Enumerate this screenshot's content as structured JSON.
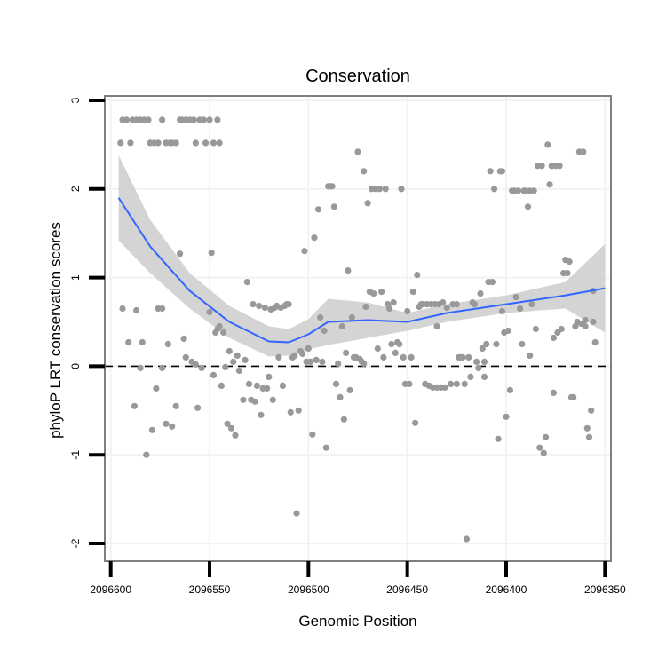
{
  "chart_data": {
    "type": "scatter",
    "title": "Conservation",
    "xlabel": "Genomic Position",
    "ylabel": "phyloP LRT conservation scores",
    "x_reversed": true,
    "xlim": [
      2096603,
      2096347
    ],
    "ylim": [
      -2.2,
      3.05
    ],
    "x_ticks": [
      2096600,
      2096550,
      2096500,
      2096450,
      2096400,
      2096350
    ],
    "x_tick_labels": [
      "2096600",
      "2096550",
      "2096500",
      "2096450",
      "2096400",
      "2096350"
    ],
    "y_ticks": [
      -2,
      -1,
      0,
      1,
      2,
      3
    ],
    "y_tick_labels": [
      "-2",
      "-1",
      "0",
      "1",
      "2",
      "3"
    ],
    "reference_line": 0,
    "colors": {
      "points": "#999999",
      "smooth": "#3366FF",
      "band": "#CCCCCC",
      "frame": "#7f7f7f"
    },
    "smooth": {
      "x": [
        2096596,
        2096580,
        2096560,
        2096540,
        2096520,
        2096510,
        2096500,
        2096490,
        2096470,
        2096450,
        2096430,
        2096400,
        2096370,
        2096350
      ],
      "y": [
        1.9,
        1.35,
        0.85,
        0.5,
        0.28,
        0.27,
        0.36,
        0.5,
        0.52,
        0.5,
        0.6,
        0.7,
        0.8,
        0.88
      ],
      "upper": [
        2.38,
        1.65,
        1.05,
        0.68,
        0.45,
        0.42,
        0.53,
        0.76,
        0.72,
        0.6,
        0.7,
        0.8,
        0.95,
        1.38
      ],
      "lower": [
        1.42,
        1.05,
        0.65,
        0.32,
        0.11,
        0.12,
        0.19,
        0.24,
        0.32,
        0.4,
        0.5,
        0.6,
        0.65,
        0.38
      ]
    },
    "points": [
      [
        2096595,
        2.52
      ],
      [
        2096594,
        2.78
      ],
      [
        2096592,
        2.78
      ],
      [
        2096590,
        2.52
      ],
      [
        2096589,
        2.78
      ],
      [
        2096587,
        2.78
      ],
      [
        2096585,
        2.78
      ],
      [
        2096583,
        2.78
      ],
      [
        2096581,
        2.78
      ],
      [
        2096580,
        2.52
      ],
      [
        2096578,
        2.52
      ],
      [
        2096576,
        2.52
      ],
      [
        2096574,
        2.78
      ],
      [
        2096572,
        2.52
      ],
      [
        2096570,
        2.52
      ],
      [
        2096569,
        2.52
      ],
      [
        2096567,
        2.52
      ],
      [
        2096565,
        2.78
      ],
      [
        2096564,
        2.78
      ],
      [
        2096562,
        2.78
      ],
      [
        2096560,
        2.78
      ],
      [
        2096558,
        2.78
      ],
      [
        2096557,
        2.52
      ],
      [
        2096555,
        2.78
      ],
      [
        2096553,
        2.78
      ],
      [
        2096552,
        2.52
      ],
      [
        2096550,
        2.78
      ],
      [
        2096548,
        2.52
      ],
      [
        2096546,
        2.78
      ],
      [
        2096545,
        2.52
      ],
      [
        2096594,
        0.65
      ],
      [
        2096591,
        0.27
      ],
      [
        2096588,
        -0.45
      ],
      [
        2096587,
        0.63
      ],
      [
        2096585,
        -0.02
      ],
      [
        2096584,
        0.27
      ],
      [
        2096582,
        -1.0
      ],
      [
        2096579,
        -0.72
      ],
      [
        2096577,
        -0.25
      ],
      [
        2096576,
        0.65
      ],
      [
        2096574,
        0.65
      ],
      [
        2096574,
        -0.02
      ],
      [
        2096572,
        -0.65
      ],
      [
        2096571,
        0.25
      ],
      [
        2096569,
        -0.68
      ],
      [
        2096567,
        -0.45
      ],
      [
        2096565,
        1.27
      ],
      [
        2096563,
        0.31
      ],
      [
        2096562,
        0.1
      ],
      [
        2096559,
        0.05
      ],
      [
        2096557,
        0.02
      ],
      [
        2096556,
        -0.47
      ],
      [
        2096554,
        -0.02
      ],
      [
        2096550,
        0.61
      ],
      [
        2096549,
        1.28
      ],
      [
        2096548,
        -0.1
      ],
      [
        2096547,
        0.38
      ],
      [
        2096546,
        0.42
      ],
      [
        2096545,
        0.45
      ],
      [
        2096544,
        -0.22
      ],
      [
        2096543,
        0.38
      ],
      [
        2096542,
        -0.01
      ],
      [
        2096541,
        -0.65
      ],
      [
        2096540,
        0.17
      ],
      [
        2096539,
        -0.7
      ],
      [
        2096538,
        0.05
      ],
      [
        2096537,
        -0.78
      ],
      [
        2096536,
        0.12
      ],
      [
        2096535,
        -0.05
      ],
      [
        2096533,
        -0.38
      ],
      [
        2096532,
        0.07
      ],
      [
        2096531,
        0.95
      ],
      [
        2096530,
        -0.2
      ],
      [
        2096529,
        -0.38
      ],
      [
        2096528,
        0.7
      ],
      [
        2096527,
        -0.4
      ],
      [
        2096526,
        -0.22
      ],
      [
        2096525,
        0.68
      ],
      [
        2096524,
        -0.55
      ],
      [
        2096523,
        -0.25
      ],
      [
        2096522,
        0.66
      ],
      [
        2096521,
        -0.25
      ],
      [
        2096520,
        -0.12
      ],
      [
        2096519,
        0.64
      ],
      [
        2096518,
        -0.38
      ],
      [
        2096517,
        0.66
      ],
      [
        2096516,
        0.68
      ],
      [
        2096515,
        0.1
      ],
      [
        2096514,
        0.66
      ],
      [
        2096513,
        -0.22
      ],
      [
        2096512,
        0.68
      ],
      [
        2096511,
        0.7
      ],
      [
        2096510,
        0.7
      ],
      [
        2096509,
        -0.52
      ],
      [
        2096508,
        0.1
      ],
      [
        2096507,
        0.12
      ],
      [
        2096506,
        -1.66
      ],
      [
        2096505,
        -0.5
      ],
      [
        2096504,
        0.17
      ],
      [
        2096503,
        0.14
      ],
      [
        2096502,
        1.3
      ],
      [
        2096501,
        0.05
      ],
      [
        2096500,
        0.2
      ],
      [
        2096499,
        0.05
      ],
      [
        2096498,
        -0.77
      ],
      [
        2096497,
        1.45
      ],
      [
        2096496,
        0.07
      ],
      [
        2096495,
        1.77
      ],
      [
        2096494,
        0.55
      ],
      [
        2096493,
        0.05
      ],
      [
        2096492,
        0.4
      ],
      [
        2096491,
        -0.92
      ],
      [
        2096490,
        2.03
      ],
      [
        2096489,
        2.03
      ],
      [
        2096488,
        2.03
      ],
      [
        2096487,
        1.8
      ],
      [
        2096486,
        -0.2
      ],
      [
        2096485,
        0.03
      ],
      [
        2096484,
        -0.35
      ],
      [
        2096483,
        0.45
      ],
      [
        2096482,
        -0.6
      ],
      [
        2096481,
        0.15
      ],
      [
        2096480,
        1.08
      ],
      [
        2096479,
        -0.27
      ],
      [
        2096478,
        0.55
      ],
      [
        2096477,
        0.1
      ],
      [
        2096476,
        0.1
      ],
      [
        2096475,
        2.42
      ],
      [
        2096474,
        0.08
      ],
      [
        2096473,
        0.05
      ],
      [
        2096472,
        2.2
      ],
      [
        2096471,
        0.67
      ],
      [
        2096470,
        1.84
      ],
      [
        2096469,
        0.84
      ],
      [
        2096468,
        2.0
      ],
      [
        2096467,
        0.82
      ],
      [
        2096466,
        2.0
      ],
      [
        2096465,
        0.2
      ],
      [
        2096464,
        2.0
      ],
      [
        2096463,
        0.84
      ],
      [
        2096462,
        0.1
      ],
      [
        2096461,
        2.0
      ],
      [
        2096460,
        0.7
      ],
      [
        2096459,
        0.65
      ],
      [
        2096458,
        0.25
      ],
      [
        2096457,
        0.72
      ],
      [
        2096456,
        0.15
      ],
      [
        2096455,
        0.27
      ],
      [
        2096454,
        0.25
      ],
      [
        2096453,
        2.0
      ],
      [
        2096452,
        0.1
      ],
      [
        2096451,
        -0.2
      ],
      [
        2096450,
        0.62
      ],
      [
        2096449,
        -0.2
      ],
      [
        2096448,
        0.1
      ],
      [
        2096447,
        0.84
      ],
      [
        2096446,
        -0.64
      ],
      [
        2096445,
        1.03
      ],
      [
        2096444,
        0.67
      ],
      [
        2096443,
        0.7
      ],
      [
        2096442,
        0.7
      ],
      [
        2096441,
        -0.2
      ],
      [
        2096440,
        0.7
      ],
      [
        2096439,
        -0.22
      ],
      [
        2096438,
        0.7
      ],
      [
        2096437,
        -0.24
      ],
      [
        2096436,
        0.7
      ],
      [
        2096435,
        -0.24
      ],
      [
        2096434,
        0.7
      ],
      [
        2096433,
        -0.24
      ],
      [
        2096432,
        0.72
      ],
      [
        2096431,
        -0.24
      ],
      [
        2096430,
        0.66
      ],
      [
        2096428,
        -0.2
      ],
      [
        2096427,
        0.7
      ],
      [
        2096425,
        -0.2
      ],
      [
        2096424,
        0.1
      ],
      [
        2096423,
        0.1
      ],
      [
        2096422,
        0.1
      ],
      [
        2096421,
        -0.2
      ],
      [
        2096420,
        -1.95
      ],
      [
        2096419,
        0.1
      ],
      [
        2096418,
        -0.12
      ],
      [
        2096417,
        0.72
      ],
      [
        2096416,
        0.7
      ],
      [
        2096415,
        0.05
      ],
      [
        2096414,
        -0.02
      ],
      [
        2096413,
        0.82
      ],
      [
        2096412,
        0.2
      ],
      [
        2096411,
        -0.12
      ],
      [
        2096410,
        0.25
      ],
      [
        2096409,
        0.95
      ],
      [
        2096408,
        2.2
      ],
      [
        2096407,
        0.95
      ],
      [
        2096406,
        2.0
      ],
      [
        2096405,
        0.25
      ],
      [
        2096404,
        -0.82
      ],
      [
        2096403,
        2.2
      ],
      [
        2096402,
        2.2
      ],
      [
        2096401,
        0.38
      ],
      [
        2096400,
        -0.57
      ],
      [
        2096399,
        0.4
      ],
      [
        2096398,
        -0.27
      ],
      [
        2096397,
        1.98
      ],
      [
        2096396,
        1.98
      ],
      [
        2096395,
        0.78
      ],
      [
        2096394,
        1.98
      ],
      [
        2096393,
        0.65
      ],
      [
        2096392,
        0.25
      ],
      [
        2096391,
        1.98
      ],
      [
        2096390,
        1.98
      ],
      [
        2096389,
        1.8
      ],
      [
        2096388,
        1.98
      ],
      [
        2096387,
        0.7
      ],
      [
        2096386,
        1.98
      ],
      [
        2096385,
        0.42
      ],
      [
        2096384,
        2.26
      ],
      [
        2096383,
        -0.92
      ],
      [
        2096382,
        2.26
      ],
      [
        2096381,
        -0.98
      ],
      [
        2096380,
        -0.8
      ],
      [
        2096379,
        2.5
      ],
      [
        2096378,
        2.05
      ],
      [
        2096377,
        2.26
      ],
      [
        2096376,
        0.32
      ],
      [
        2096375,
        2.26
      ],
      [
        2096374,
        0.38
      ],
      [
        2096373,
        2.26
      ],
      [
        2096372,
        0.42
      ],
      [
        2096371,
        1.05
      ],
      [
        2096370,
        1.2
      ],
      [
        2096369,
        1.05
      ],
      [
        2096368,
        1.18
      ],
      [
        2096367,
        -0.35
      ],
      [
        2096366,
        -0.35
      ],
      [
        2096365,
        0.45
      ],
      [
        2096364,
        0.5
      ],
      [
        2096363,
        2.42
      ],
      [
        2096362,
        0.48
      ],
      [
        2096361,
        2.42
      ],
      [
        2096360,
        0.45
      ],
      [
        2096359,
        -0.7
      ],
      [
        2096358,
        -0.8
      ],
      [
        2096357,
        -0.5
      ],
      [
        2096356,
        0.85
      ],
      [
        2096355,
        0.27
      ],
      [
        2096356,
        0.5
      ],
      [
        2096360,
        0.52
      ],
      [
        2096376,
        -0.3
      ],
      [
        2096388,
        0.12
      ],
      [
        2096402,
        0.62
      ],
      [
        2096411,
        0.05
      ],
      [
        2096425,
        0.7
      ],
      [
        2096435,
        0.45
      ],
      [
        2096472,
        0.03
      ]
    ]
  }
}
